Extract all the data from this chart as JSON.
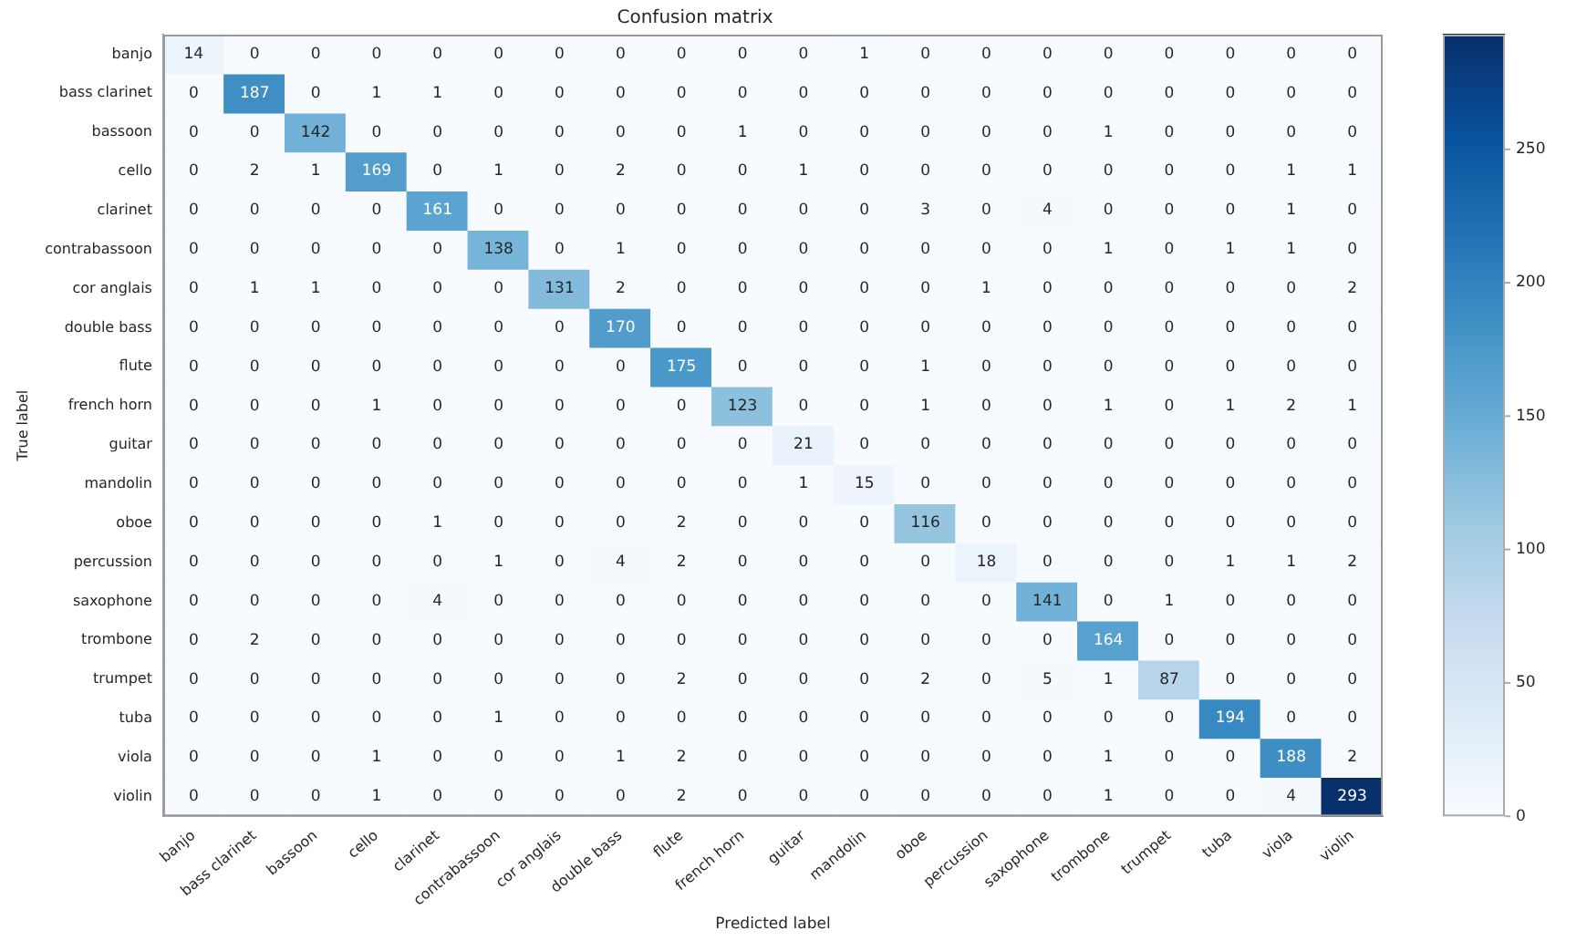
{
  "chart_data": {
    "type": "heatmap",
    "title": "Confusion matrix",
    "xlabel": "Predicted label",
    "ylabel": "True label",
    "categories": [
      "banjo",
      "bass clarinet",
      "bassoon",
      "cello",
      "clarinet",
      "contrabassoon",
      "cor anglais",
      "double bass",
      "flute",
      "french horn",
      "guitar",
      "mandolin",
      "oboe",
      "percussion",
      "saxophone",
      "trombone",
      "trumpet",
      "tuba",
      "viola",
      "violin"
    ],
    "y_categories": [
      "banjo",
      "bass clarinet",
      "bassoon",
      "cello",
      "clarinet",
      "contrabassoon",
      "cor anglais",
      "double bass",
      "flute",
      "french horn",
      "guitar",
      "mandolin",
      "oboe",
      "percussion",
      "saxophone",
      "trombone",
      "trumpet",
      "tuba",
      "viola",
      "violin"
    ],
    "cells": [
      [
        14,
        0,
        0,
        0,
        0,
        0,
        0,
        0,
        0,
        0,
        0,
        1,
        0,
        0,
        0,
        0,
        0,
        0,
        0,
        0
      ],
      [
        0,
        187,
        0,
        1,
        1,
        0,
        0,
        0,
        0,
        0,
        0,
        0,
        0,
        0,
        0,
        0,
        0,
        0,
        0,
        0
      ],
      [
        0,
        0,
        142,
        0,
        0,
        0,
        0,
        0,
        0,
        1,
        0,
        0,
        0,
        0,
        0,
        1,
        0,
        0,
        0,
        0
      ],
      [
        0,
        2,
        1,
        169,
        0,
        1,
        0,
        2,
        0,
        0,
        1,
        0,
        0,
        0,
        0,
        0,
        0,
        0,
        1,
        1
      ],
      [
        0,
        0,
        0,
        0,
        161,
        0,
        0,
        0,
        0,
        0,
        0,
        0,
        3,
        0,
        4,
        0,
        0,
        0,
        1,
        0
      ],
      [
        0,
        0,
        0,
        0,
        0,
        138,
        0,
        1,
        0,
        0,
        0,
        0,
        0,
        0,
        0,
        1,
        0,
        1,
        1,
        0
      ],
      [
        0,
        1,
        1,
        0,
        0,
        0,
        131,
        2,
        0,
        0,
        0,
        0,
        0,
        1,
        0,
        0,
        0,
        0,
        0,
        2
      ],
      [
        0,
        0,
        0,
        0,
        0,
        0,
        0,
        170,
        0,
        0,
        0,
        0,
        0,
        0,
        0,
        0,
        0,
        0,
        0,
        0
      ],
      [
        0,
        0,
        0,
        0,
        0,
        0,
        0,
        0,
        175,
        0,
        0,
        0,
        1,
        0,
        0,
        0,
        0,
        0,
        0,
        0
      ],
      [
        0,
        0,
        0,
        1,
        0,
        0,
        0,
        0,
        0,
        123,
        0,
        0,
        1,
        0,
        0,
        1,
        0,
        1,
        2,
        1
      ],
      [
        0,
        0,
        0,
        0,
        0,
        0,
        0,
        0,
        0,
        0,
        21,
        0,
        0,
        0,
        0,
        0,
        0,
        0,
        0,
        0
      ],
      [
        0,
        0,
        0,
        0,
        0,
        0,
        0,
        0,
        0,
        0,
        1,
        15,
        0,
        0,
        0,
        0,
        0,
        0,
        0,
        0
      ],
      [
        0,
        0,
        0,
        0,
        1,
        0,
        0,
        0,
        2,
        0,
        0,
        0,
        116,
        0,
        0,
        0,
        0,
        0,
        0,
        0
      ],
      [
        0,
        0,
        0,
        0,
        0,
        1,
        0,
        4,
        2,
        0,
        0,
        0,
        0,
        18,
        0,
        0,
        0,
        1,
        1,
        2
      ],
      [
        0,
        0,
        0,
        0,
        4,
        0,
        0,
        0,
        0,
        0,
        0,
        0,
        0,
        0,
        141,
        0,
        1,
        0,
        0,
        0
      ],
      [
        0,
        2,
        0,
        0,
        0,
        0,
        0,
        0,
        0,
        0,
        0,
        0,
        0,
        0,
        0,
        164,
        0,
        0,
        0,
        0
      ],
      [
        0,
        0,
        0,
        0,
        0,
        0,
        0,
        0,
        2,
        0,
        0,
        0,
        2,
        0,
        5,
        1,
        87,
        0,
        0,
        0
      ],
      [
        0,
        0,
        0,
        0,
        0,
        1,
        0,
        0,
        0,
        0,
        0,
        0,
        0,
        0,
        0,
        0,
        0,
        194,
        0,
        0
      ],
      [
        0,
        0,
        0,
        1,
        0,
        0,
        0,
        1,
        2,
        0,
        0,
        0,
        0,
        0,
        0,
        1,
        0,
        0,
        188,
        2
      ],
      [
        0,
        0,
        0,
        1,
        0,
        0,
        0,
        0,
        2,
        0,
        0,
        0,
        0,
        0,
        0,
        1,
        0,
        0,
        4,
        293
      ]
    ],
    "clim": [
      0,
      293
    ],
    "cticks": [
      0,
      50,
      100,
      150,
      200,
      250
    ],
    "data_labels": true,
    "grid": false,
    "legend": false
  }
}
